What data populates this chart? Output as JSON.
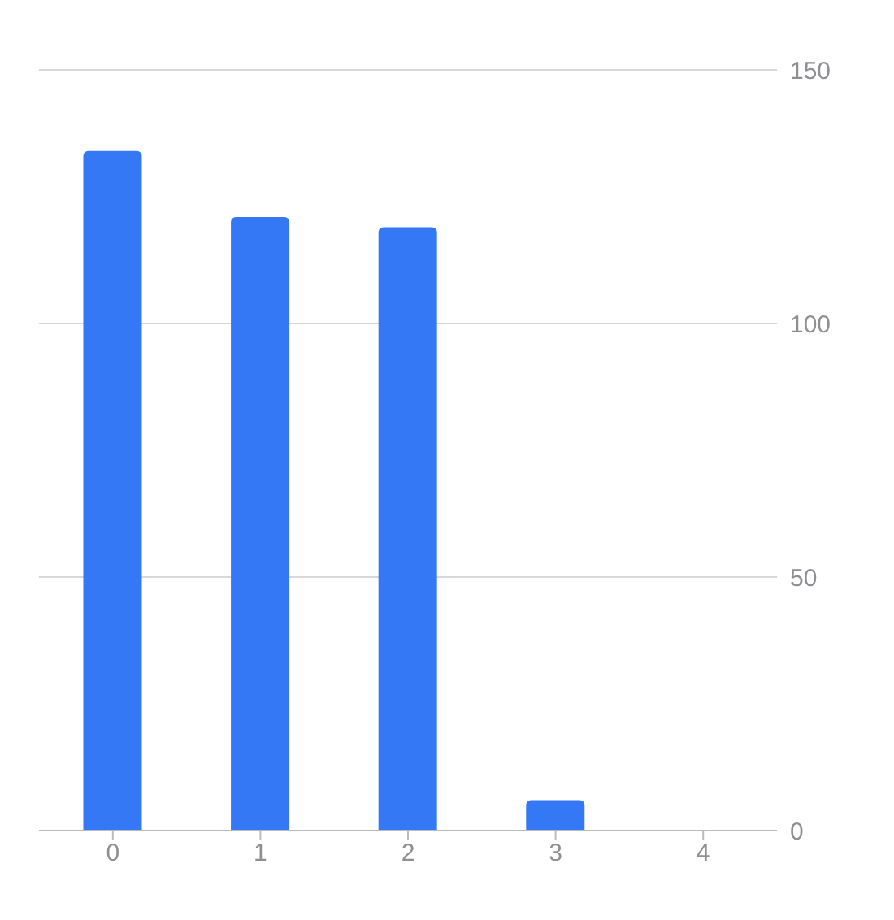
{
  "chart_data": {
    "type": "bar",
    "categories": [
      "0",
      "1",
      "2",
      "3",
      "4"
    ],
    "values": [
      134,
      121,
      119,
      6,
      0
    ],
    "color": "#3478f6",
    "ylim": [
      0,
      150
    ],
    "yticks": [
      0,
      50,
      100,
      150
    ],
    "grid": "y"
  }
}
